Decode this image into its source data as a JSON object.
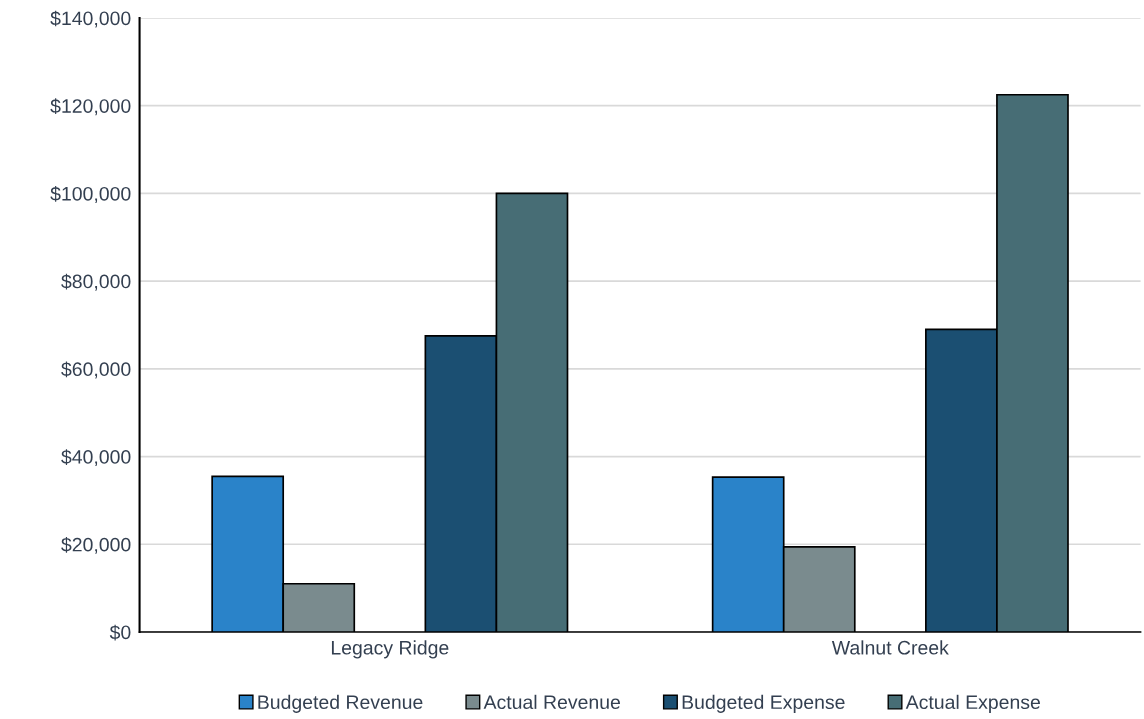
{
  "chart_data": {
    "type": "bar",
    "categories": [
      "Legacy Ridge",
      "Walnut Creek"
    ],
    "series": [
      {
        "name": "Budgeted Revenue",
        "color": "#2a83c9",
        "values": [
          35500,
          35300
        ]
      },
      {
        "name": "Actual Revenue",
        "color": "#7a8b8e",
        "values": [
          11000,
          19400
        ]
      },
      {
        "name": "Budgeted Expense",
        "color": "#1b4f72",
        "values": [
          67500,
          69000
        ]
      },
      {
        "name": "Actual Expense",
        "color": "#476d75",
        "values": [
          100000,
          122500
        ]
      }
    ],
    "ylim": [
      0,
      140000
    ],
    "yticks": [
      {
        "value": 0,
        "label": "$0"
      },
      {
        "value": 20000,
        "label": "$20,000"
      },
      {
        "value": 40000,
        "label": "$40,000"
      },
      {
        "value": 60000,
        "label": "$60,000"
      },
      {
        "value": 80000,
        "label": "$80,000"
      },
      {
        "value": 100000,
        "label": "$100,000"
      },
      {
        "value": 120000,
        "label": "$120,000"
      },
      {
        "value": 140000,
        "label": "$140,000"
      }
    ],
    "grid": "y",
    "legend": "bottom"
  }
}
